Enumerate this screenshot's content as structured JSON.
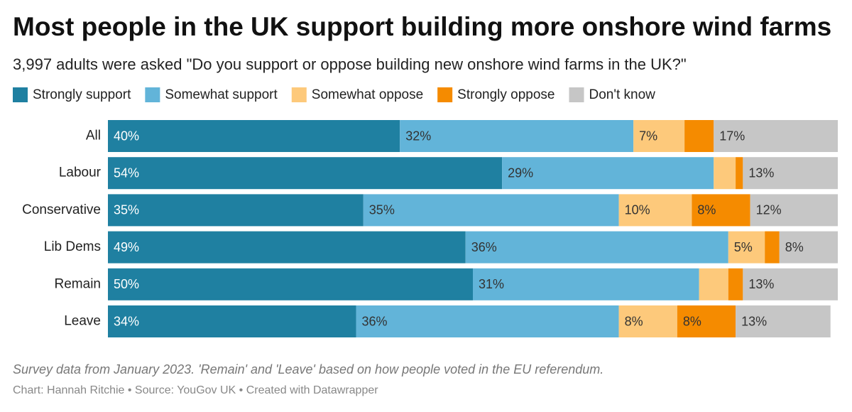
{
  "chart_data": {
    "type": "stacked-barh",
    "title": "Most people in the UK support building more onshore wind farms",
    "subtitle": "3,997 adults were asked \"Do you support or oppose building new onshore wind farms in the UK?\"",
    "categories": [
      "All",
      "Labour",
      "Conservative",
      "Lib Dems",
      "Remain",
      "Leave"
    ],
    "series": [
      {
        "name": "Strongly support",
        "color": "#1f80a1",
        "values": [
          40,
          54,
          35,
          49,
          50,
          34
        ],
        "value_labels": [
          "40%",
          "54%",
          "35%",
          "49%",
          "50%",
          "34%"
        ]
      },
      {
        "name": "Somewhat support",
        "color": "#62b4d9",
        "values": [
          32,
          29,
          35,
          36,
          31,
          36
        ],
        "value_labels": [
          "32%",
          "29%",
          "35%",
          "36%",
          "31%",
          "36%"
        ]
      },
      {
        "name": "Somewhat oppose",
        "color": "#fdc97b",
        "values": [
          7,
          3,
          10,
          5,
          4,
          8
        ],
        "value_labels": [
          "7%",
          null,
          "10%",
          "5%",
          null,
          "8%"
        ]
      },
      {
        "name": "Strongly oppose",
        "color": "#f58b00",
        "values": [
          4,
          1,
          8,
          2,
          2,
          8
        ],
        "value_labels": [
          null,
          null,
          "8%",
          null,
          null,
          "8%"
        ]
      },
      {
        "name": "Don't know",
        "color": "#c6c6c6",
        "values": [
          17,
          13,
          12,
          8,
          13,
          13
        ],
        "value_labels": [
          "17%",
          "13%",
          "12%",
          "8%",
          "13%",
          "13%"
        ]
      }
    ],
    "xlim": [
      0,
      100
    ],
    "note": "Survey data from January 2023. 'Remain' and 'Leave' based on how people voted in the EU referendum.",
    "source": "Chart: Hannah Ritchie • Source: YouGov UK • Created with Datawrapper"
  }
}
